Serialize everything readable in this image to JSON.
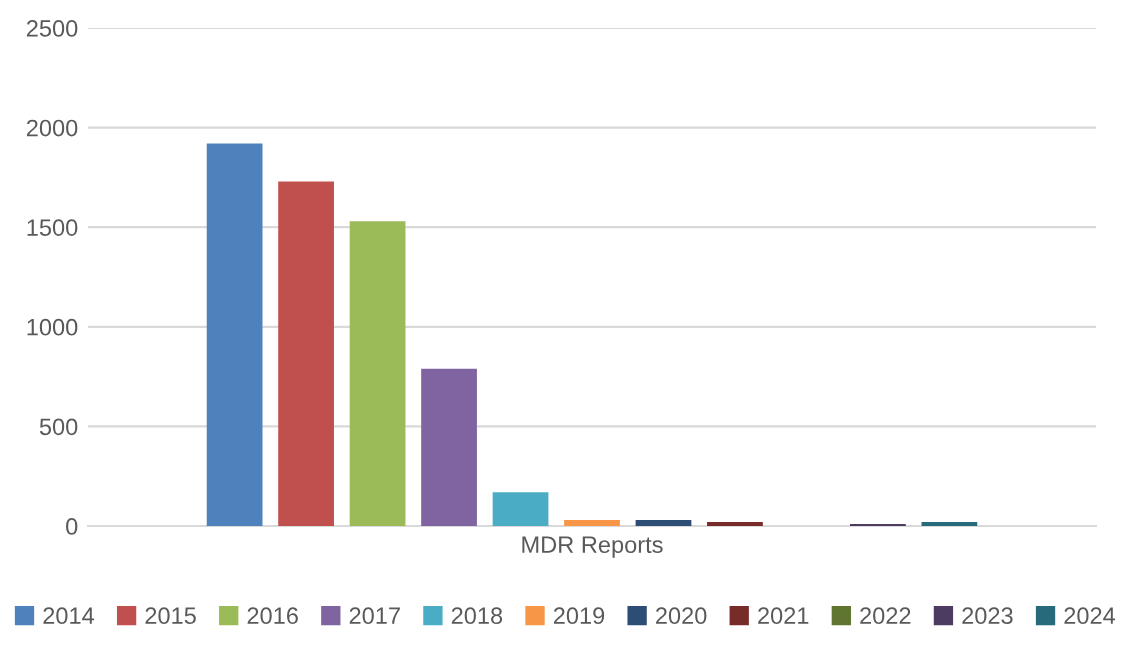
{
  "chart_data": {
    "type": "bar",
    "categories": [
      "MDR Reports"
    ],
    "series": [
      {
        "name": "2014",
        "color": "#4f81bd",
        "values": [
          1920
        ]
      },
      {
        "name": "2015",
        "color": "#c0504d",
        "values": [
          1730
        ]
      },
      {
        "name": "2016",
        "color": "#9bbb59",
        "values": [
          1530
        ]
      },
      {
        "name": "2017",
        "color": "#8064a2",
        "values": [
          790
        ]
      },
      {
        "name": "2018",
        "color": "#4bacc6",
        "values": [
          170
        ]
      },
      {
        "name": "2019",
        "color": "#f79646",
        "values": [
          30
        ]
      },
      {
        "name": "2020",
        "color": "#2c4d75",
        "values": [
          30
        ]
      },
      {
        "name": "2021",
        "color": "#772c2a",
        "values": [
          20
        ]
      },
      {
        "name": "2022",
        "color": "#5f7530",
        "values": [
          0
        ]
      },
      {
        "name": "2023",
        "color": "#4d3b62",
        "values": [
          10
        ]
      },
      {
        "name": "2024",
        "color": "#276a7c",
        "values": [
          20
        ]
      }
    ],
    "ylim": [
      0,
      2500
    ],
    "yticks": [
      0,
      500,
      1000,
      1500,
      2000,
      2500
    ],
    "grid": "y",
    "legend": "bottom"
  }
}
